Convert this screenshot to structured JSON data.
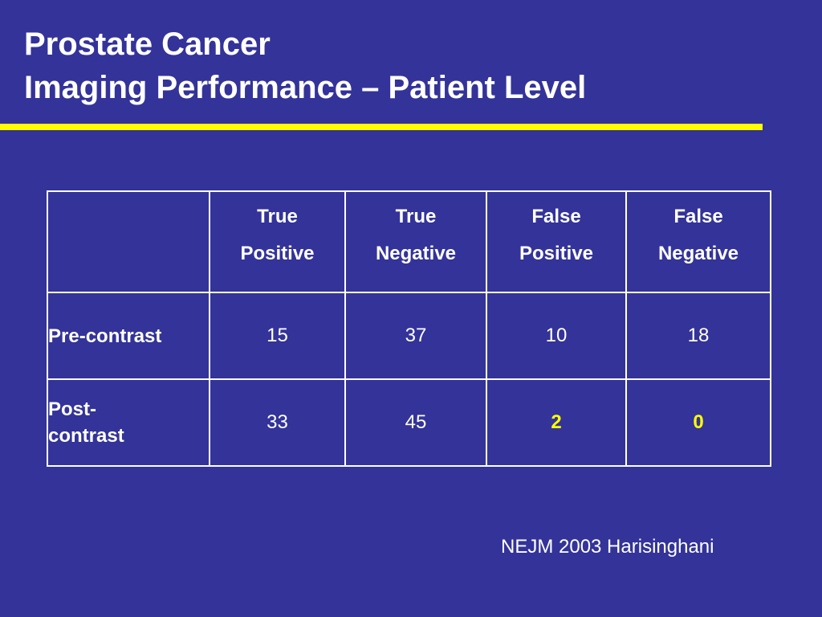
{
  "title": {
    "line1": "Prostate Cancer",
    "line2": "Imaging Performance – Patient Level"
  },
  "colors": {
    "background": "#333399",
    "accent_rule": "#ffff00",
    "text": "#ffffff",
    "highlight": "#ffff00"
  },
  "table": {
    "headers": [
      {
        "line1": "True",
        "line2": "Positive"
      },
      {
        "line1": "True",
        "line2": "Negative"
      },
      {
        "line1": "False",
        "line2": "Positive"
      },
      {
        "line1": "False",
        "line2": "Negative"
      }
    ],
    "rows": [
      {
        "label": "Pre-contrast",
        "values": [
          "15",
          "37",
          "10",
          "18"
        ]
      },
      {
        "label_line1": "Post-",
        "label_line2": "contrast",
        "values": [
          "33",
          "45",
          "2",
          "0"
        ]
      }
    ]
  },
  "citation": "NEJM 2003 Harisinghani"
}
